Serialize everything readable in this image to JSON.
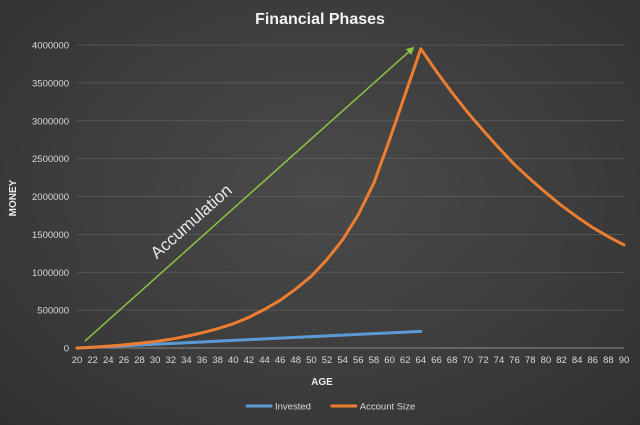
{
  "chart_data": {
    "type": "line",
    "title": "Financial Phases",
    "xlabel": "AGE",
    "ylabel": "MONEY",
    "ylim": [
      0,
      4000000
    ],
    "yticks": [
      0,
      500000,
      1000000,
      1500000,
      2000000,
      2500000,
      3000000,
      3500000,
      4000000
    ],
    "x": [
      20,
      22,
      24,
      26,
      28,
      30,
      32,
      34,
      36,
      38,
      40,
      42,
      44,
      46,
      48,
      50,
      52,
      54,
      56,
      58,
      60,
      62,
      64,
      66,
      68,
      70,
      72,
      74,
      76,
      78,
      80,
      82,
      84,
      86,
      88,
      90
    ],
    "grid": "horizontal",
    "legend_position": "bottom",
    "series": [
      {
        "name": "Invested",
        "color": "#5b9bd5",
        "values": [
          0,
          10000,
          20000,
          30000,
          40000,
          50000,
          60000,
          70000,
          80000,
          90000,
          100000,
          110000,
          120000,
          130000,
          140000,
          150000,
          160000,
          170000,
          180000,
          190000,
          200000,
          210000,
          220000,
          null,
          null,
          null,
          null,
          null,
          null,
          null,
          null,
          null,
          null,
          null,
          null,
          null
        ]
      },
      {
        "name": "Account Size",
        "color": "#ed7d31",
        "values": [
          0,
          10000,
          25000,
          42000,
          62000,
          85000,
          115000,
          155000,
          200000,
          255000,
          320000,
          405000,
          510000,
          630000,
          780000,
          950000,
          1170000,
          1430000,
          1760000,
          2180000,
          2750000,
          3350000,
          3950000,
          3650000,
          3370000,
          3110000,
          2870000,
          2640000,
          2420000,
          2230000,
          2050000,
          1880000,
          1730000,
          1590000,
          1470000,
          1360000
        ]
      }
    ],
    "annotations": [
      {
        "text": "Accumulation",
        "type": "arrow",
        "color": "#8cc43f",
        "from": [
          21,
          90000
        ],
        "to": [
          63,
          3960000
        ]
      }
    ]
  }
}
